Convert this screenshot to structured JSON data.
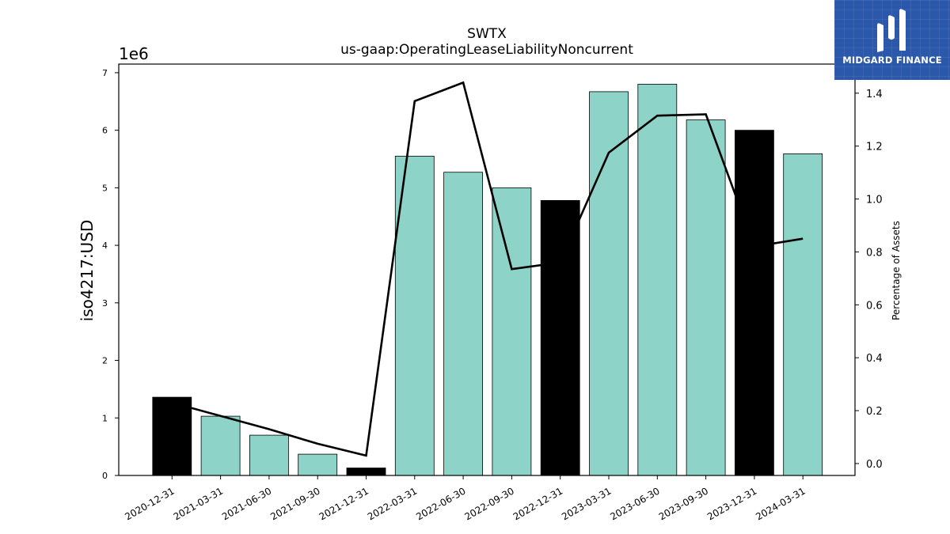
{
  "chart_data": {
    "type": "bar",
    "title": "SWTX",
    "subtitle": "us-gaap:OperatingLeaseLiabilityNoncurrent",
    "ylabel": "iso4217:USD",
    "y_offset_label": "1e6",
    "y2label": "Percentage of Assets",
    "categories": [
      "2020-12-31",
      "2021-03-31",
      "2021-06-30",
      "2021-09-30",
      "2021-12-31",
      "2022-03-31",
      "2022-06-30",
      "2022-09-30",
      "2022-12-31",
      "2023-03-31",
      "2023-06-30",
      "2023-09-30",
      "2023-12-31",
      "2024-03-31"
    ],
    "values": [
      1360000,
      1030000,
      700000,
      370000,
      130000,
      5550000,
      5270000,
      5000000,
      4780000,
      6670000,
      6800000,
      6180000,
      6000000,
      5590000
    ],
    "bar_colors": [
      "#000000",
      "#8dd3c7",
      "#8dd3c7",
      "#8dd3c7",
      "#000000",
      "#8dd3c7",
      "#8dd3c7",
      "#8dd3c7",
      "#000000",
      "#8dd3c7",
      "#8dd3c7",
      "#8dd3c7",
      "#000000",
      "#8dd3c7"
    ],
    "line_series": {
      "values": [
        0.23,
        0.18,
        0.13,
        0.075,
        0.03,
        1.37,
        1.44,
        0.735,
        0.76,
        1.175,
        1.315,
        1.32,
        0.82,
        0.85
      ]
    },
    "ylim": [
      0,
      7150000
    ],
    "y2lim": [
      -0.045,
      1.51
    ],
    "yticks": [
      0,
      1000000,
      2000000,
      3000000,
      4000000,
      5000000,
      6000000,
      7000000
    ],
    "ytick_labels": [
      "0",
      "1",
      "2",
      "3",
      "4",
      "5",
      "6",
      "7"
    ],
    "y2ticks": [
      0.0,
      0.2,
      0.4,
      0.6,
      0.8,
      1.0,
      1.2,
      1.4
    ],
    "y2tick_labels": [
      "0.0",
      "0.2",
      "0.4",
      "0.6",
      "0.8",
      "1.0",
      "1.2",
      "1.4"
    ],
    "grid": false,
    "legend": "none"
  },
  "logo": {
    "text": "MIDGARD FINANCE"
  },
  "colors": {
    "accent_bar": "#8dd3c7",
    "highlight_bar": "#000000",
    "line": "#000000",
    "logo_bg": "#2b58ab"
  }
}
